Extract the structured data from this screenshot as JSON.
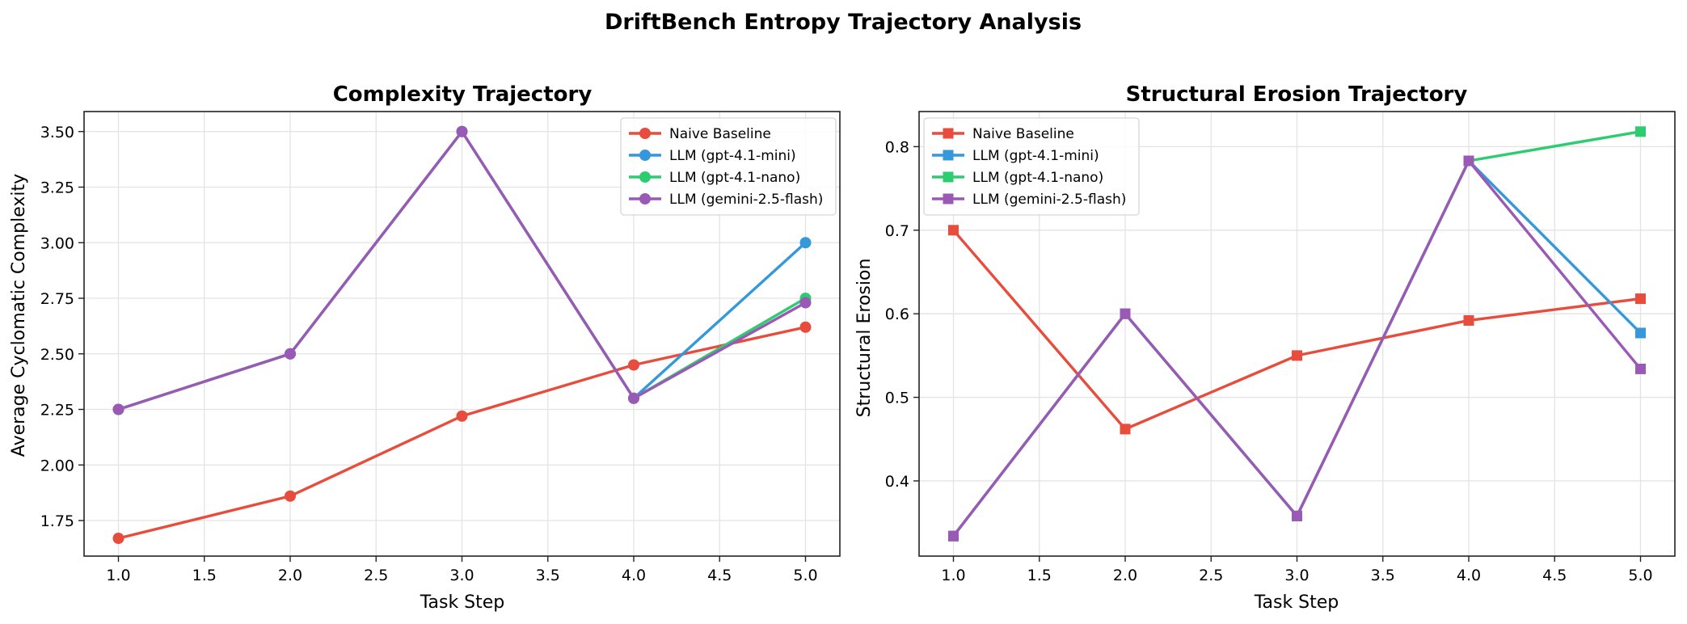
{
  "figure": {
    "title": "DriftBench Entropy Trajectory Analysis"
  },
  "chart_data": [
    {
      "type": "line",
      "marker": "circle",
      "title": "Complexity Trajectory",
      "xlabel": "Task Step",
      "ylabel": "Average Cyclomatic Complexity",
      "xlim": [
        0.8,
        5.2
      ],
      "ylim": [
        1.59,
        3.59
      ],
      "xticks": [
        "1.0",
        "1.5",
        "2.0",
        "2.5",
        "3.0",
        "3.5",
        "4.0",
        "4.5",
        "5.0"
      ],
      "yticks": [
        "1.75",
        "2.00",
        "2.25",
        "2.50",
        "2.75",
        "3.00",
        "3.25",
        "3.50"
      ],
      "grid": true,
      "legend_position": "upper right",
      "series": [
        {
          "name": "Naive Baseline",
          "color": "#e74c3c",
          "x": [
            1,
            2,
            3,
            4,
            5
          ],
          "y": [
            1.67,
            1.86,
            2.22,
            2.45,
            2.62
          ]
        },
        {
          "name": "LLM (gpt-4.1-mini)",
          "color": "#3498db",
          "x": [
            1,
            2,
            3,
            4,
            5
          ],
          "y": [
            2.25,
            2.5,
            3.5,
            2.3,
            3.0
          ]
        },
        {
          "name": "LLM (gpt-4.1-nano)",
          "color": "#2ecc71",
          "x": [
            1,
            2,
            3,
            4,
            5
          ],
          "y": [
            2.25,
            2.5,
            3.5,
            2.3,
            2.75
          ]
        },
        {
          "name": "LLM (gemini-2.5-flash)",
          "color": "#9b59b6",
          "x": [
            1,
            2,
            3,
            4,
            5
          ],
          "y": [
            2.25,
            2.5,
            3.5,
            2.3,
            2.73
          ]
        }
      ]
    },
    {
      "type": "line",
      "marker": "square",
      "title": "Structural Erosion Trajectory",
      "xlabel": "Task Step",
      "ylabel": "Structural Erosion",
      "xlim": [
        0.8,
        5.2
      ],
      "ylim": [
        0.31,
        0.842
      ],
      "xticks": [
        "1.0",
        "1.5",
        "2.0",
        "2.5",
        "3.0",
        "3.5",
        "4.0",
        "4.5",
        "5.0"
      ],
      "yticks": [
        "0.4",
        "0.5",
        "0.6",
        "0.7",
        "0.8"
      ],
      "grid": true,
      "legend_position": "upper left",
      "series": [
        {
          "name": "Naive Baseline",
          "color": "#e74c3c",
          "x": [
            1,
            2,
            3,
            4,
            5
          ],
          "y": [
            0.7,
            0.462,
            0.55,
            0.592,
            0.618
          ]
        },
        {
          "name": "LLM (gpt-4.1-mini)",
          "color": "#3498db",
          "x": [
            1,
            2,
            3,
            4,
            5
          ],
          "y": [
            0.334,
            0.6,
            0.358,
            0.783,
            0.577
          ]
        },
        {
          "name": "LLM (gpt-4.1-nano)",
          "color": "#2ecc71",
          "x": [
            1,
            2,
            3,
            4,
            5
          ],
          "y": [
            0.334,
            0.6,
            0.358,
            0.783,
            0.818
          ]
        },
        {
          "name": "LLM (gemini-2.5-flash)",
          "color": "#9b59b6",
          "x": [
            1,
            2,
            3,
            4,
            5
          ],
          "y": [
            0.334,
            0.6,
            0.358,
            0.783,
            0.534
          ]
        }
      ]
    }
  ]
}
